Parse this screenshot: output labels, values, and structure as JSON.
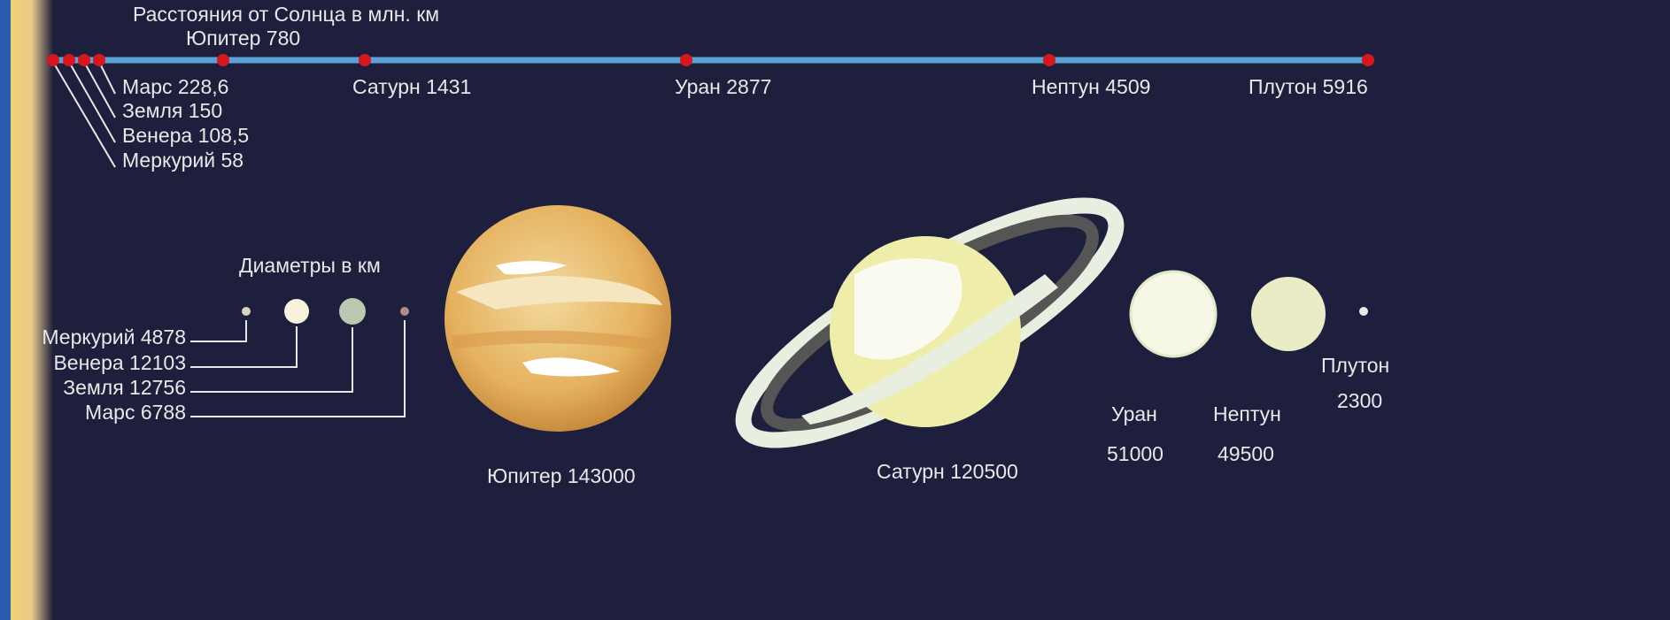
{
  "distances": {
    "title": "Расстояния от Солнца в млн. км",
    "planets": [
      "Меркурий 58",
      "Венера 108,5",
      "Земля 150",
      "Марс 228,6",
      "Юпитер 780",
      "Сатурн 1431",
      "Уран 2877",
      "Нептун 4509",
      "Плутон 5916"
    ]
  },
  "diameters": {
    "title": "Диаметры в км",
    "small_planets": [
      "Меркурий 4878",
      "Венера 12103",
      "Земля 12756",
      "Марс 6788"
    ],
    "jupiter": "Юпитер 143000",
    "saturn": "Сатурн 120500",
    "uranus": {
      "name": "Уран",
      "value": "51000"
    },
    "neptune": {
      "name": "Нептун",
      "value": "49500"
    },
    "pluto": {
      "name": "Плутон",
      "value": "2300"
    }
  }
}
